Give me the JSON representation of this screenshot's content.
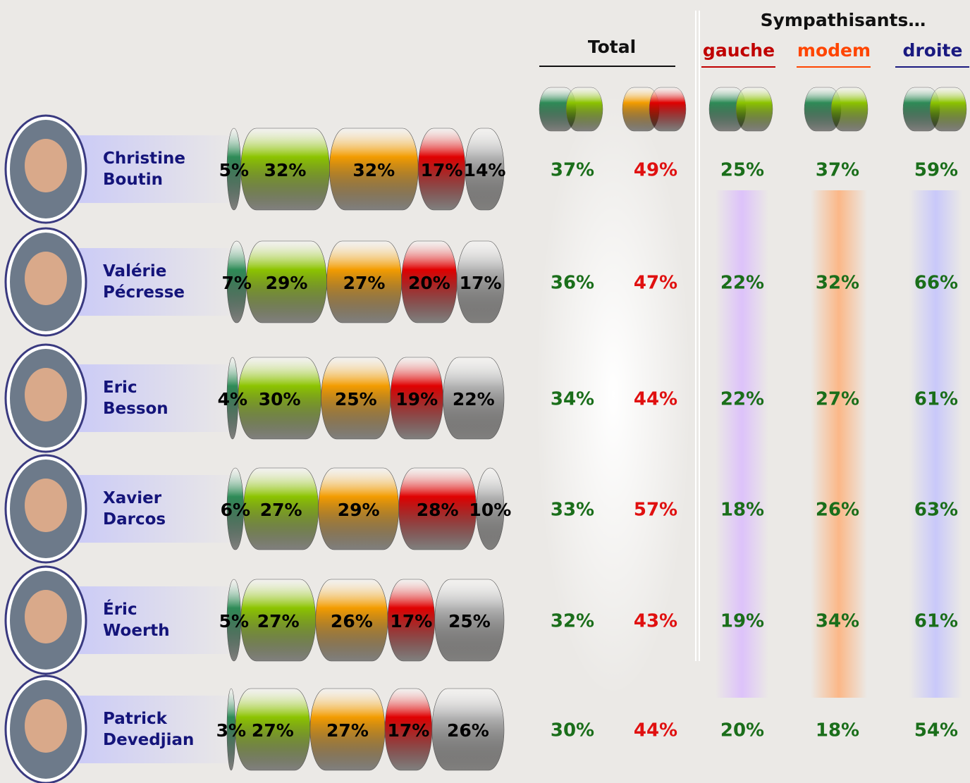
{
  "chart_data": {
    "type": "stacked-bar",
    "orientation": "horizontal",
    "categories": [
      "Christine Boutin",
      "Valérie Pécresse",
      "Eric Besson",
      "Xavier Darcos",
      "Éric Woerth",
      "Patrick Devedjian"
    ],
    "series": [
      {
        "color": "#2e8b57",
        "values": [
          5,
          7,
          4,
          6,
          5,
          3
        ],
        "value_labels": [
          "5%",
          "7%",
          "4%",
          "6%",
          "5%",
          "3%"
        ]
      },
      {
        "color": "#8cc400",
        "values": [
          32,
          29,
          30,
          27,
          27,
          27
        ],
        "value_labels": [
          "32%",
          "29%",
          "30%",
          "27%",
          "27%",
          "27%"
        ]
      },
      {
        "color": "#f39c00",
        "values": [
          32,
          27,
          25,
          29,
          26,
          27
        ],
        "value_labels": [
          "32%",
          "27%",
          "25%",
          "29%",
          "26%",
          "27%"
        ]
      },
      {
        "color": "#e00000",
        "values": [
          17,
          20,
          19,
          28,
          17,
          17
        ],
        "value_labels": [
          "17%",
          "20%",
          "19%",
          "28%",
          "17%",
          "17%"
        ]
      },
      {
        "color": "#b4b4b4",
        "values": [
          14,
          17,
          22,
          10,
          25,
          26
        ],
        "value_labels": [
          "14%",
          "17%",
          "22%",
          "10%",
          "25%",
          "26%"
        ]
      }
    ]
  },
  "table": {
    "group_headers": [
      "Total",
      "Sympathisants…"
    ],
    "columns": [
      "gauche",
      "modem",
      "droite"
    ],
    "column_colors": [
      "#c00000",
      "#ff4500",
      "#1a1a80"
    ],
    "value_colors": [
      "#1a6e1a",
      "#e01010",
      "#1a6e1a",
      "#1a6e1a",
      "#1a6e1a"
    ],
    "rows": [
      [
        "37%",
        "49%",
        "25%",
        "37%",
        "59%"
      ],
      [
        "36%",
        "47%",
        "22%",
        "32%",
        "66%"
      ],
      [
        "34%",
        "44%",
        "22%",
        "27%",
        "61%"
      ],
      [
        "33%",
        "57%",
        "18%",
        "26%",
        "63%"
      ],
      [
        "32%",
        "43%",
        "19%",
        "34%",
        "61%"
      ],
      [
        "30%",
        "44%",
        "20%",
        "18%",
        "54%"
      ]
    ]
  }
}
